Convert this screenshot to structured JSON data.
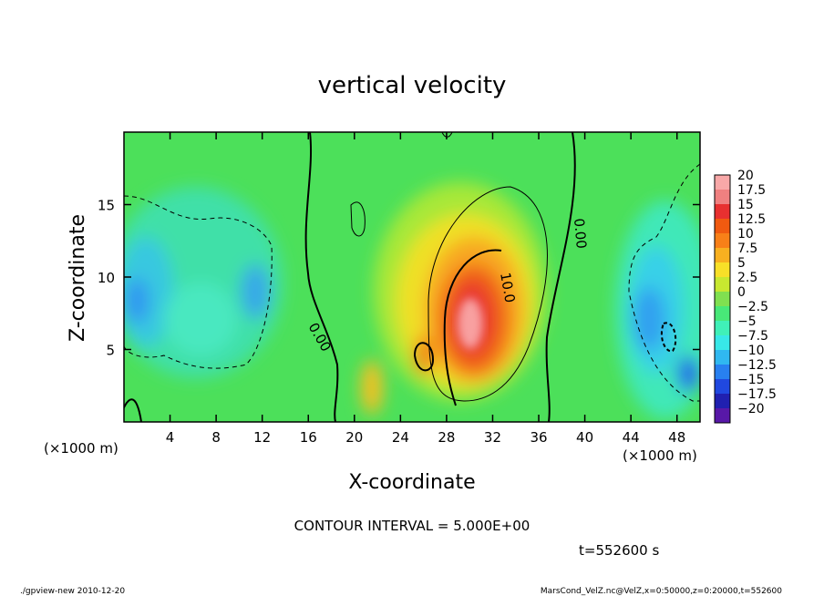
{
  "chart_data": {
    "type": "heatmap",
    "title": "vertical velocity",
    "xlabel": "X-coordinate",
    "ylabel": "Z-coordinate",
    "x_unit": "(×1000 m)",
    "y_unit": "(×1000 m)",
    "xlim": [
      0,
      50
    ],
    "ylim": [
      0,
      20
    ],
    "x_ticks": [
      "4",
      "8",
      "12",
      "16",
      "20",
      "24",
      "28",
      "32",
      "36",
      "40",
      "44",
      "48"
    ],
    "y_ticks": [
      "5",
      "10",
      "15"
    ],
    "x_tick_values": [
      4,
      8,
      12,
      16,
      20,
      24,
      28,
      32,
      36,
      40,
      44,
      48
    ],
    "y_tick_values": [
      5,
      10,
      15
    ],
    "colorbar": {
      "labels": [
        "20",
        "17.5",
        "15",
        "12.5",
        "10",
        "7.5",
        "5",
        "2.5",
        "0",
        "−2.5",
        "−5",
        "−7.5",
        "−10",
        "−12.5",
        "−15",
        "−17.5",
        "−20"
      ],
      "colors": [
        "#f8a8a8",
        "#f08080",
        "#e83030",
        "#f05a10",
        "#f88018",
        "#f8b020",
        "#f8e028",
        "#c8e830",
        "#80e050",
        "#48e878",
        "#40f0b8",
        "#38e8e8",
        "#30b8f0",
        "#2880f0",
        "#2048e0",
        "#2020b0",
        "#5818a8"
      ]
    },
    "contour_labels": [
      "10.0",
      "0.00",
      "0.00"
    ],
    "contour_interval": "CONTOUR INTERVAL = 5.000E+00",
    "time": "t=552600 s"
  },
  "footer": {
    "left": "./gpview-new 2010-12-20",
    "right": "MarsCond_VelZ.nc@VelZ,x=0:50000,z=0:20000,t=552600"
  }
}
